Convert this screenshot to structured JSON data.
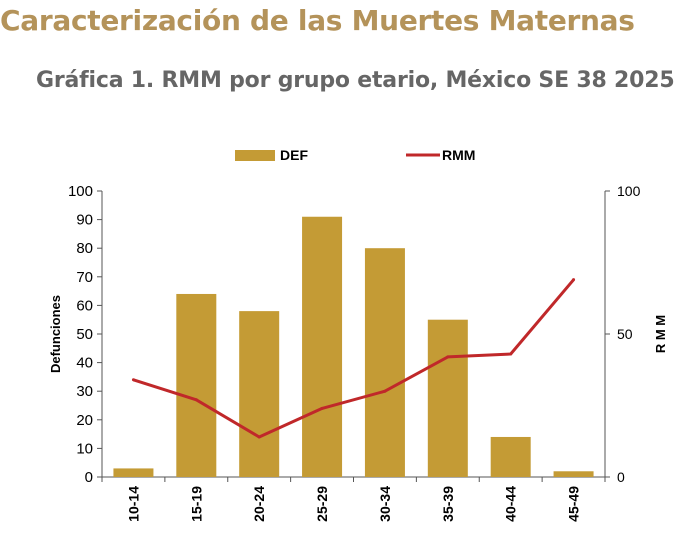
{
  "page": {
    "title": "Caracterización de las Muertes Maternas",
    "subtitle": "Gráfica 1. RMM por grupo etario, México SE 38 2025"
  },
  "colors": {
    "bars": "#c49b35",
    "line": "#c0282a",
    "title": "#b4935a",
    "subtitle": "#666666"
  },
  "chart_data": {
    "type": "bar",
    "title": "Gráfica 1. RMM por grupo etario, México SE 38 2025",
    "categories": [
      "10-14",
      "15-19",
      "20-24",
      "25-29",
      "30-34",
      "35-39",
      "40-44",
      "45-49"
    ],
    "series": [
      {
        "name": "DEF",
        "type": "bar",
        "axis": "left",
        "values": [
          3,
          64,
          58,
          91,
          80,
          55,
          14,
          2
        ]
      },
      {
        "name": "RMM",
        "type": "line",
        "axis": "right",
        "values": [
          34,
          27,
          14,
          24,
          30,
          42,
          43,
          69
        ]
      }
    ],
    "ylabel": "Defunciones",
    "ylim": [
      0,
      100
    ],
    "yticks": [
      "0",
      "10",
      "20",
      "30",
      "40",
      "50",
      "60",
      "70",
      "80",
      "90",
      "100"
    ],
    "y2label": "R M M",
    "y2lim": [
      0,
      100
    ],
    "y2ticks": [
      "0",
      "50",
      "100"
    ],
    "legend": "top",
    "grid": false
  }
}
